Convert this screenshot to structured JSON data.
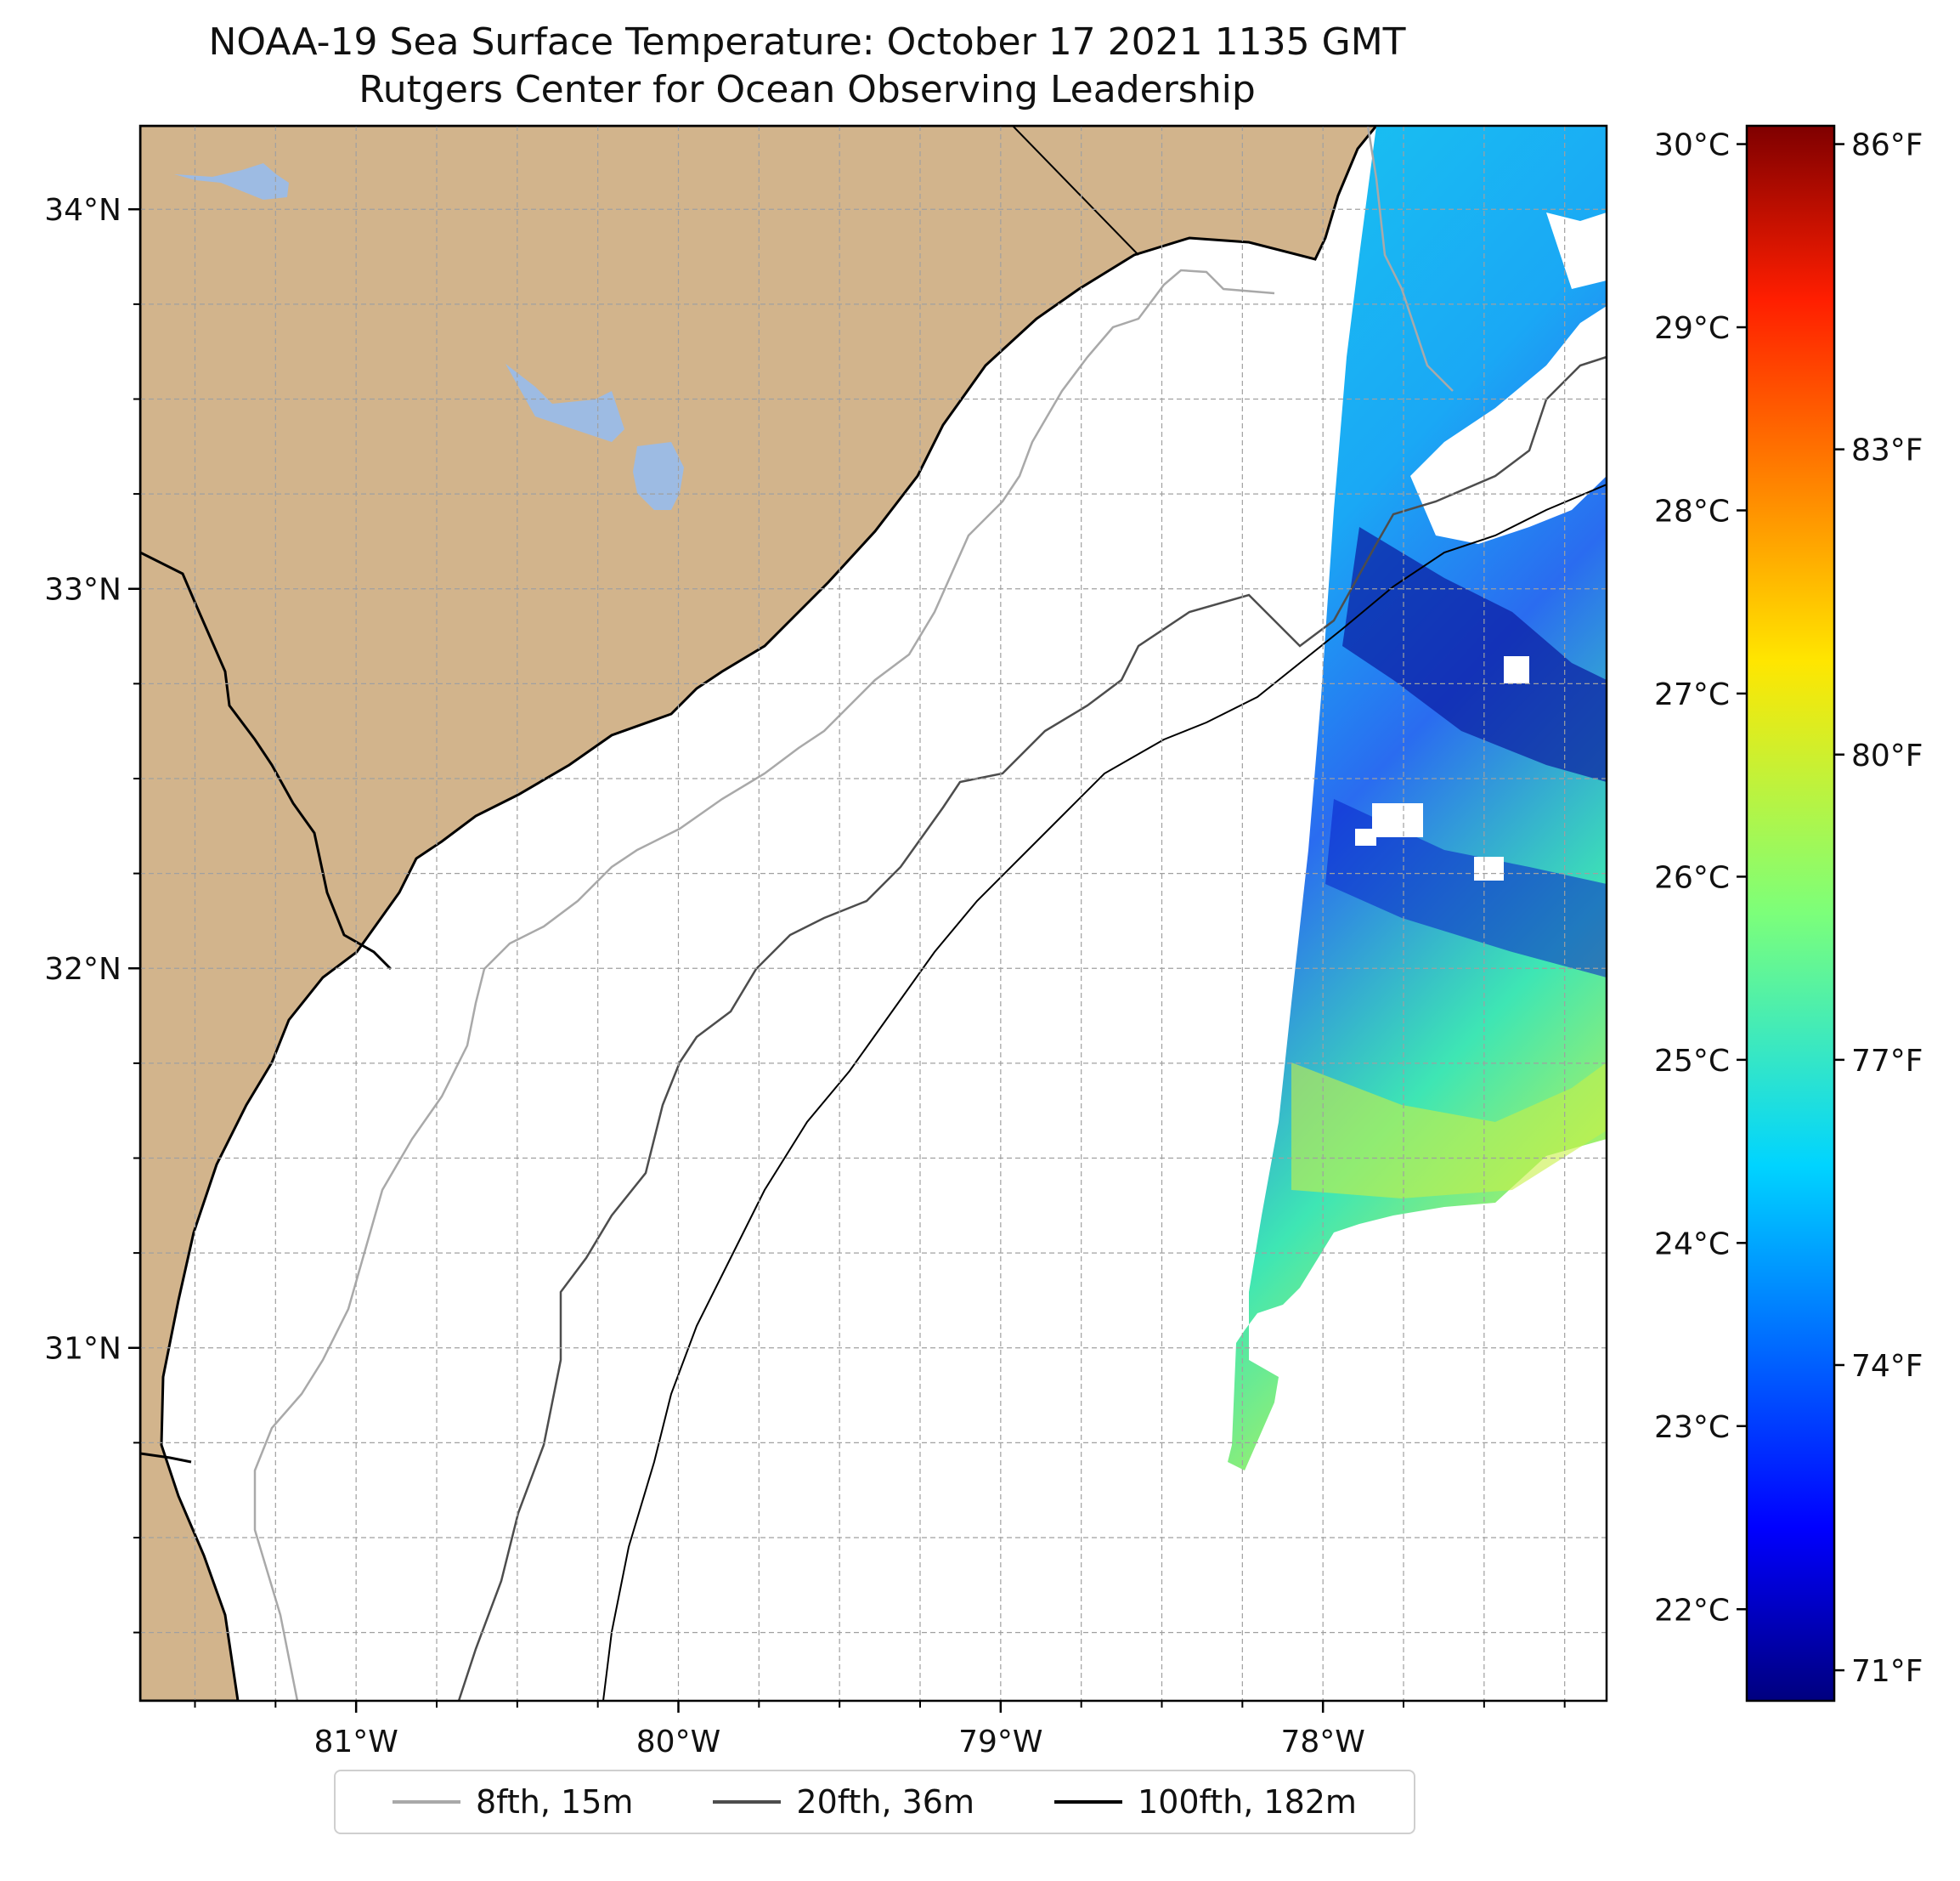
{
  "title_line1": "NOAA-19 Sea Surface Temperature: October 17 2021 1135 GMT",
  "title_line2": "Rutgers Center for Ocean Observing Leadership",
  "map": {
    "extent": {
      "lon_min": -81.67,
      "lon_max": -77.12,
      "lat_min": 30.07,
      "lat_max": 34.22
    },
    "lat_ticks": [
      {
        "value": 34,
        "label": "34°N"
      },
      {
        "value": 33,
        "label": "33°N"
      },
      {
        "value": 32,
        "label": "32°N"
      },
      {
        "value": 31,
        "label": "31°N"
      }
    ],
    "lon_ticks": [
      {
        "value": -81,
        "label": "81°W"
      },
      {
        "value": -80,
        "label": "80°W"
      },
      {
        "value": -79,
        "label": "79°W"
      },
      {
        "value": -78,
        "label": "78°W"
      }
    ],
    "gridlines": "dashed grey every 0.25°",
    "land_color": "#d2b48c",
    "lake_color": "#9dbbe3",
    "ocean_color": "#ffffff"
  },
  "colorbar": {
    "colormap": "jet",
    "celsius_ticks": [
      {
        "value": 30,
        "label": "30°C"
      },
      {
        "value": 29,
        "label": "29°C"
      },
      {
        "value": 28,
        "label": "28°C"
      },
      {
        "value": 27,
        "label": "27°C"
      },
      {
        "value": 26,
        "label": "26°C"
      },
      {
        "value": 25,
        "label": "25°C"
      },
      {
        "value": 24,
        "label": "24°C"
      },
      {
        "value": 23,
        "label": "23°C"
      },
      {
        "value": 22,
        "label": "22°C"
      }
    ],
    "fahrenheit_ticks": [
      {
        "value": 86,
        "label": "86°F"
      },
      {
        "value": 83,
        "label": "83°F"
      },
      {
        "value": 80,
        "label": "80°F"
      },
      {
        "value": 77,
        "label": "77°F"
      },
      {
        "value": 74,
        "label": "74°F"
      },
      {
        "value": 71,
        "label": "71°F"
      }
    ]
  },
  "legend": [
    {
      "label": "8fth, 15m",
      "color": "#a9a9a9"
    },
    {
      "label": "20fth, 36m",
      "color": "#4d4d4d"
    },
    {
      "label": "100fth, 182m",
      "color": "#000000"
    }
  ]
}
